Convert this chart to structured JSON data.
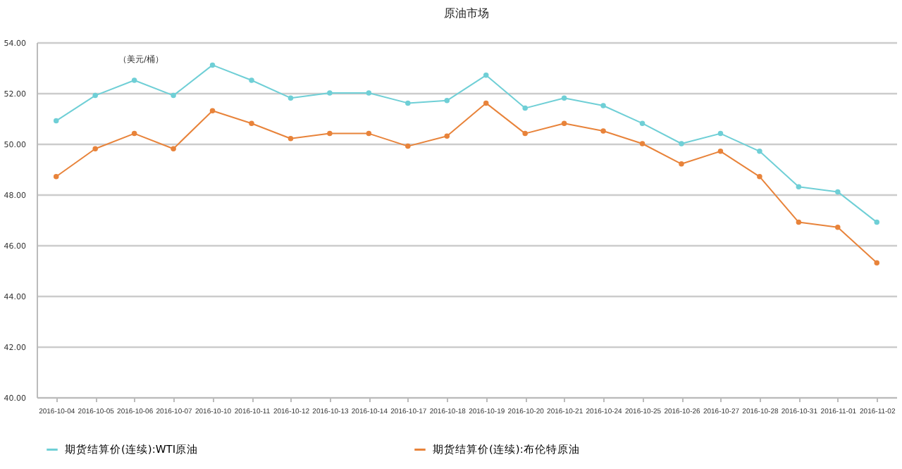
{
  "chart_data": {
    "type": "line",
    "title": "原油市场",
    "annotations": [
      "（美元/桶）"
    ],
    "categories": [
      "2016-10-04",
      "2016-10-05",
      "2016-10-06",
      "2016-10-07",
      "2016-10-10",
      "2016-10-11",
      "2016-10-12",
      "2016-10-13",
      "2016-10-14",
      "2016-10-17",
      "2016-10-18",
      "2016-10-19",
      "2016-10-20",
      "2016-10-21",
      "2016-10-24",
      "2016-10-25",
      "2016-10-26",
      "2016-10-27",
      "2016-10-28",
      "2016-10-31",
      "2016-11-01",
      "2016-11-02"
    ],
    "series": [
      {
        "name": "期货结算价(连续):WTI原油",
        "color": "#6fcfd6",
        "values": [
          50.9,
          51.9,
          52.5,
          51.9,
          53.1,
          52.5,
          51.8,
          52.0,
          52.0,
          51.6,
          51.7,
          52.7,
          51.4,
          51.8,
          51.5,
          50.8,
          50.0,
          50.4,
          49.7,
          48.3,
          48.1,
          46.9
        ]
      },
      {
        "name": "期货结算价(连续):布伦特原油",
        "color": "#e8833a",
        "values": [
          48.7,
          49.8,
          50.4,
          49.8,
          51.3,
          50.8,
          50.2,
          50.4,
          50.4,
          49.9,
          50.3,
          51.6,
          50.4,
          50.8,
          50.5,
          50.0,
          49.2,
          49.7,
          48.7,
          46.9,
          46.7,
          45.3
        ]
      }
    ],
    "ylim": [
      40,
      54
    ],
    "yticks": [
      {
        "value": 40,
        "label": "40.00"
      },
      {
        "value": 42,
        "label": "42.00"
      },
      {
        "value": 44,
        "label": "44.00"
      },
      {
        "value": 46,
        "label": "46.00"
      },
      {
        "value": 48,
        "label": "48.00"
      },
      {
        "value": 50,
        "label": "50.00"
      },
      {
        "value": 52,
        "label": "52.00"
      },
      {
        "value": 54,
        "label": "54.00"
      }
    ],
    "grid": "y",
    "legend": "bottom",
    "marker": "circle",
    "line_style": "solid"
  }
}
